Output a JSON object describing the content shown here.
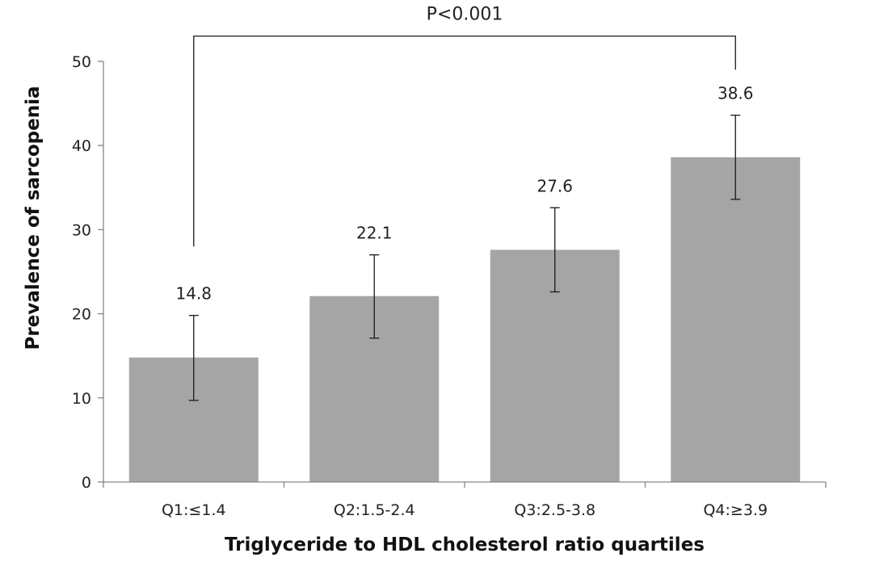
{
  "chart_data": {
    "type": "bar",
    "title": "",
    "xlabel": "Triglyceride to HDL cholesterol ratio quartiles",
    "ylabel": "Prevalence of sarcopenia",
    "categories": [
      "Q1:≤1.4",
      "Q2:1.5-2.4",
      "Q3:2.5-3.8",
      "Q4:≥3.9"
    ],
    "values": [
      14.8,
      22.1,
      27.6,
      38.6
    ],
    "value_labels": [
      "14.8",
      "22.1",
      "27.6",
      "38.6"
    ],
    "error_bars": [
      {
        "low": 9.7,
        "high": 19.8
      },
      {
        "low": 17.1,
        "high": 27.0
      },
      {
        "low": 22.6,
        "high": 32.6
      },
      {
        "low": 33.6,
        "high": 43.6
      }
    ],
    "ylim": [
      0,
      50
    ],
    "yticks": [
      0,
      10,
      20,
      30,
      40,
      50
    ],
    "ytick_labels": [
      "0",
      "10",
      "20",
      "30",
      "40",
      "50"
    ],
    "grid": false,
    "legend": "none",
    "significance": {
      "label": "P<0.001",
      "from_category": 0,
      "to_category": 3,
      "line_level": 53.0,
      "left_tick_end": 28.0,
      "right_tick_end": 49.0
    },
    "colors": {
      "bar": "#a5a5a5",
      "axis": "#868686",
      "error_bar": "#1a1a1a",
      "bracket": "#1a1a1a"
    }
  }
}
